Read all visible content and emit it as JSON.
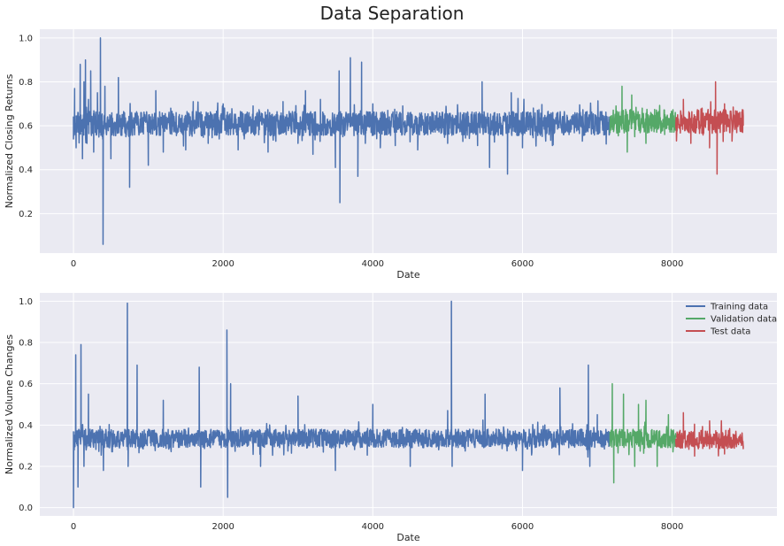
{
  "title": "Data Separation",
  "colors": {
    "background": "#EAEAF2",
    "grid": "#FFFFFF",
    "training": "#4C72B0",
    "validation": "#55A868",
    "test": "#C44E52"
  },
  "legend": {
    "placement": "upper right of bottom subplot",
    "entries": [
      "Training data",
      "Validation data",
      "Test data"
    ]
  },
  "chart_data": [
    {
      "type": "line",
      "title": "",
      "xlabel": "Date",
      "ylabel": "Normalized Closing Returns",
      "xlim": [
        -450,
        9400
      ],
      "ylim": [
        0.02,
        1.04
      ],
      "xticks": [
        0,
        2000,
        4000,
        6000,
        8000
      ],
      "yticks": [
        0.2,
        0.4,
        0.6,
        0.8,
        1.0
      ],
      "ytick_labels": [
        "0.2",
        "0.4",
        "0.6",
        "0.8",
        "1.0"
      ],
      "grid": true,
      "legend": false,
      "series": [
        {
          "name": "Training data",
          "x_range": [
            0,
            7170
          ],
          "baseline": 0.61,
          "x": [
            0,
            15,
            35,
            60,
            90,
            120,
            140,
            160,
            180,
            200,
            230,
            270,
            320,
            360,
            385,
            395,
            405,
            420,
            500,
            600,
            700,
            750,
            900,
            1000,
            1100,
            1200,
            1300,
            1500,
            1600,
            1800,
            2000,
            2200,
            2400,
            2600,
            2800,
            3000,
            3100,
            3200,
            3300,
            3500,
            3550,
            3560,
            3600,
            3700,
            3800,
            3850,
            3900,
            4000,
            4100,
            4200,
            4300,
            4400,
            4600,
            4800,
            5000,
            5200,
            5400,
            5460,
            5560,
            5700,
            5800,
            5850,
            6000,
            6200,
            6400,
            6600,
            6800,
            7000,
            7100,
            7170
          ],
          "y": [
            0.54,
            0.77,
            0.5,
            0.66,
            0.88,
            0.45,
            0.8,
            0.9,
            0.52,
            0.72,
            0.85,
            0.48,
            0.75,
            1.0,
            0.55,
            0.06,
            0.62,
            0.78,
            0.45,
            0.82,
            0.55,
            0.32,
            0.66,
            0.42,
            0.76,
            0.48,
            0.68,
            0.49,
            0.71,
            0.52,
            0.7,
            0.49,
            0.69,
            0.48,
            0.71,
            0.52,
            0.76,
            0.47,
            0.72,
            0.41,
            0.85,
            0.25,
            0.55,
            0.91,
            0.37,
            0.89,
            0.52,
            0.7,
            0.5,
            0.67,
            0.51,
            0.69,
            0.49,
            0.66,
            0.52,
            0.65,
            0.51,
            0.8,
            0.41,
            0.6,
            0.38,
            0.75,
            0.5,
            0.67,
            0.51,
            0.64,
            0.53,
            0.64,
            0.56,
            0.63
          ]
        },
        {
          "name": "Validation data",
          "x_range": [
            7170,
            8050
          ],
          "baseline": 0.62,
          "x": [
            7170,
            7250,
            7330,
            7400,
            7460,
            7500,
            7600,
            7650,
            7800,
            7900,
            8050
          ],
          "y": [
            0.6,
            0.69,
            0.78,
            0.48,
            0.74,
            0.55,
            0.68,
            0.52,
            0.66,
            0.56,
            0.63
          ]
        },
        {
          "name": "Test data",
          "x_range": [
            8050,
            8950
          ],
          "baseline": 0.62,
          "x": [
            8050,
            8150,
            8250,
            8400,
            8500,
            8580,
            8600,
            8700,
            8800,
            8950
          ],
          "y": [
            0.61,
            0.72,
            0.52,
            0.68,
            0.5,
            0.8,
            0.38,
            0.7,
            0.53,
            0.6
          ]
        }
      ]
    },
    {
      "type": "line",
      "title": "",
      "xlabel": "Date",
      "ylabel": "Normalized Volume Changes",
      "xlim": [
        -450,
        9400
      ],
      "ylim": [
        -0.04,
        1.04
      ],
      "xticks": [
        0,
        2000,
        4000,
        6000,
        8000
      ],
      "yticks": [
        0.0,
        0.2,
        0.4,
        0.6,
        0.8,
        1.0
      ],
      "ytick_labels": [
        "0.0",
        "0.2",
        "0.4",
        "0.6",
        "0.8",
        "1.0"
      ],
      "grid": true,
      "legend": true,
      "series": [
        {
          "name": "Training data",
          "x_range": [
            0,
            7170
          ],
          "baseline": 0.335,
          "x": [
            0,
            10,
            30,
            60,
            100,
            140,
            200,
            400,
            720,
            730,
            850,
            1200,
            1680,
            1700,
            2050,
            2060,
            2100,
            2500,
            3000,
            3500,
            4000,
            4500,
            5000,
            5050,
            5060,
            5500,
            6000,
            6500,
            6880,
            6900,
            7000,
            7170
          ],
          "y": [
            0.0,
            0.28,
            0.74,
            0.1,
            0.79,
            0.2,
            0.55,
            0.18,
            0.99,
            0.2,
            0.69,
            0.52,
            0.68,
            0.1,
            0.86,
            0.05,
            0.6,
            0.2,
            0.54,
            0.18,
            0.5,
            0.2,
            0.47,
            1.0,
            0.2,
            0.55,
            0.18,
            0.58,
            0.69,
            0.2,
            0.45,
            0.33
          ]
        },
        {
          "name": "Validation data",
          "x_range": [
            7170,
            8050
          ],
          "baseline": 0.335,
          "x": [
            7170,
            7200,
            7220,
            7350,
            7500,
            7550,
            7650,
            7800,
            7950,
            8050
          ],
          "y": [
            0.3,
            0.6,
            0.12,
            0.55,
            0.2,
            0.5,
            0.52,
            0.2,
            0.45,
            0.34
          ]
        },
        {
          "name": "Test data",
          "x_range": [
            8050,
            8950
          ],
          "baseline": 0.33,
          "x": [
            8050,
            8150,
            8300,
            8500,
            8700,
            8950
          ],
          "y": [
            0.33,
            0.46,
            0.25,
            0.42,
            0.26,
            0.3
          ]
        }
      ]
    }
  ]
}
